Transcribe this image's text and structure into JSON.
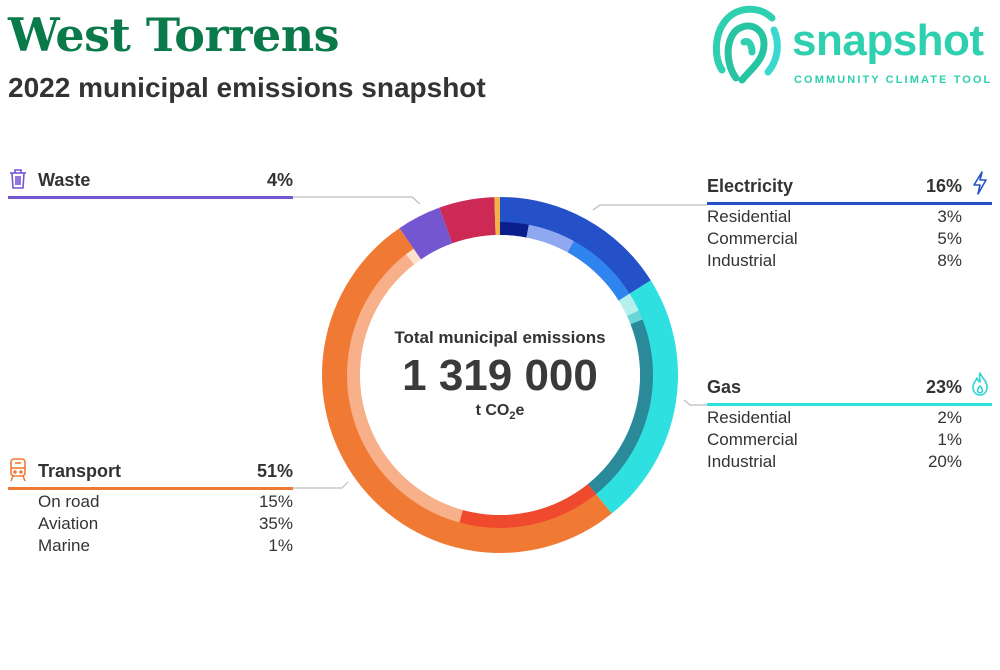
{
  "title": "West Torrens",
  "subtitle": "2022 municipal emissions snapshot",
  "logo": {
    "word": "snapshot",
    "tagline": "COMMUNITY CLIMATE TOOL",
    "color": "#2fd0b0"
  },
  "colors": {
    "title": "#0b7a4b",
    "text": "#333333"
  },
  "center": {
    "label": "Total municipal emissions",
    "value": "1 319 000",
    "unit_prefix": "t CO",
    "unit_sub": "2",
    "unit_suffix": "e"
  },
  "chart_data": {
    "type": "pie",
    "total": 1319000,
    "unit": "t CO2e",
    "categories": [
      {
        "name": "Electricity",
        "label": "16%",
        "value": 16,
        "color": "#2450c8",
        "icon": "lightning-icon",
        "subsectors": [
          {
            "name": "Residential",
            "label": "3%",
            "value": 3,
            "color": "#0b1f8c"
          },
          {
            "name": "Commercial",
            "label": "5%",
            "value": 5,
            "color": "#8fa8f0"
          },
          {
            "name": "Industrial",
            "label": "8%",
            "value": 8,
            "color": "#2f84f0"
          }
        ]
      },
      {
        "name": "Gas",
        "label": "23%",
        "value": 23,
        "color": "#2ee0e0",
        "icon": "flame-icon",
        "subsectors": [
          {
            "name": "Residential",
            "label": "2%",
            "value": 2,
            "color": "#b5f0ee"
          },
          {
            "name": "Commercial",
            "label": "1%",
            "value": 1,
            "color": "#6bd6d6"
          },
          {
            "name": "Industrial",
            "label": "20%",
            "value": 20,
            "color": "#2a8a9a"
          }
        ]
      },
      {
        "name": "Transport",
        "label": "51%",
        "value": 51,
        "color": "#f07a34",
        "icon": "train-icon",
        "subsectors": [
          {
            "name": "On road",
            "label": "15%",
            "value": 15,
            "color": "#f04a2e"
          },
          {
            "name": "Aviation",
            "label": "35%",
            "value": 35,
            "color": "#f8b08a"
          },
          {
            "name": "Marine",
            "label": "1%",
            "value": 1,
            "color": "#ffe0cc"
          }
        ]
      },
      {
        "name": "Waste",
        "label": "4%",
        "value": 4,
        "color": "#7456d0",
        "icon": "trash-icon",
        "subsectors": []
      }
    ],
    "unlabelled_segments": [
      {
        "value": 5,
        "color": "#cc2a55"
      },
      {
        "value": 0.5,
        "color": "#f2b24a"
      }
    ]
  }
}
